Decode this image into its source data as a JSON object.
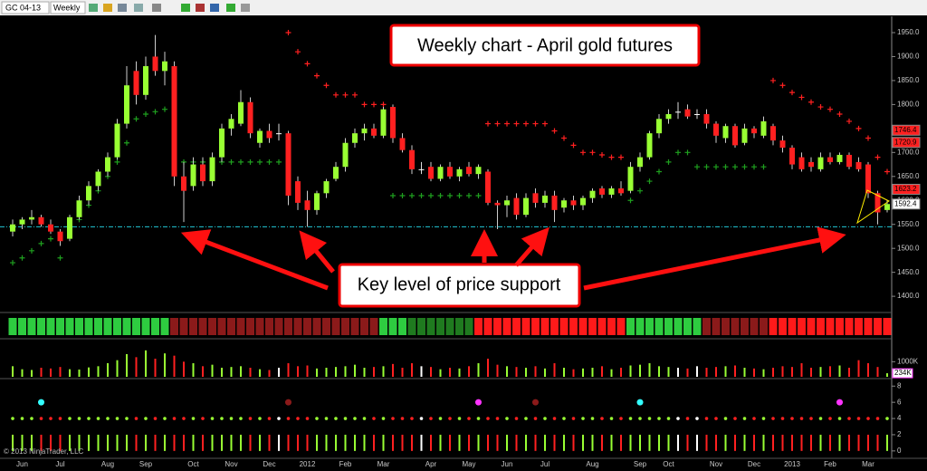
{
  "toolbar": {
    "symbol": "GC 04-13",
    "period": "Weekly"
  },
  "copyright": "© 2013 NinjaTrader, LLC",
  "chart_data": {
    "type": "candlestick",
    "title": "Weekly chart - April gold futures",
    "annotation": "Key level of price support",
    "support_level": 1545,
    "up_color": "#99ff33",
    "down_color": "#ff2020",
    "flat_color": "#ffffff",
    "ylim": [
      1370,
      1984
    ],
    "yticks": [
      {
        "value": 1400,
        "label": "1400.0"
      },
      {
        "value": 1450,
        "label": "1450.0"
      },
      {
        "value": 1500,
        "label": "1500.0"
      },
      {
        "value": 1550,
        "label": "1550.0"
      },
      {
        "value": 1600,
        "label": "1600.0"
      },
      {
        "value": 1650,
        "label": "1650.0"
      },
      {
        "value": 1700,
        "label": "1700.0"
      },
      {
        "value": 1750,
        "label": "1750.0"
      },
      {
        "value": 1800,
        "label": "1800.0"
      },
      {
        "value": 1850,
        "label": "1850.0"
      },
      {
        "value": 1900,
        "label": "1900.0"
      },
      {
        "value": 1950,
        "label": "1950.0"
      }
    ],
    "x_labels": [
      "Jun",
      "Jul",
      "Aug",
      "Sep",
      "Oct",
      "Nov",
      "Dec",
      "2012",
      "Feb",
      "Mar",
      "Apr",
      "May",
      "Jun",
      "Jul",
      "Aug",
      "Sep",
      "Oct",
      "Nov",
      "Dec",
      "2013",
      "Feb",
      "Mar"
    ],
    "x_label_index": [
      1,
      5,
      10,
      14,
      19,
      23,
      27,
      31,
      35,
      39,
      44,
      48,
      52,
      56,
      61,
      66,
      69,
      74,
      78,
      82,
      86,
      90
    ],
    "open": [
      1535,
      1550,
      1560,
      1565,
      1550,
      1535,
      1520,
      1565,
      1600,
      1630,
      1660,
      1690,
      1760,
      1870,
      1820,
      1900,
      1870,
      1880,
      1650,
      1630,
      1675,
      1640,
      1690,
      1750,
      1760,
      1805,
      1720,
      1745,
      1740,
      1740,
      1640,
      1600,
      1580,
      1615,
      1645,
      1670,
      1720,
      1740,
      1750,
      1735,
      1795,
      1730,
      1705,
      1665,
      1670,
      1645,
      1670,
      1650,
      1670,
      1655,
      1660,
      1595,
      1590,
      1605,
      1570,
      1615,
      1595,
      1610,
      1585,
      1600,
      1590,
      1605,
      1625,
      1612,
      1625,
      1620,
      1670,
      1690,
      1740,
      1770,
      1785,
      1790,
      1780,
      1780,
      1760,
      1730,
      1755,
      1720,
      1750,
      1735,
      1755,
      1725,
      1710,
      1690,
      1680,
      1665,
      1690,
      1680,
      1695,
      1680,
      1675,
      1615,
      1580
    ],
    "high": [
      1560,
      1565,
      1580,
      1570,
      1560,
      1540,
      1570,
      1610,
      1640,
      1665,
      1700,
      1770,
      1880,
      1890,
      1900,
      1945,
      1910,
      1890,
      1680,
      1690,
      1690,
      1700,
      1760,
      1780,
      1830,
      1815,
      1750,
      1760,
      1760,
      1745,
      1650,
      1620,
      1620,
      1645,
      1680,
      1730,
      1750,
      1760,
      1760,
      1795,
      1800,
      1740,
      1715,
      1680,
      1680,
      1675,
      1680,
      1670,
      1680,
      1675,
      1665,
      1600,
      1610,
      1615,
      1615,
      1625,
      1620,
      1620,
      1605,
      1610,
      1610,
      1625,
      1630,
      1630,
      1640,
      1680,
      1700,
      1745,
      1780,
      1790,
      1805,
      1800,
      1790,
      1790,
      1765,
      1760,
      1760,
      1760,
      1755,
      1775,
      1760,
      1735,
      1715,
      1700,
      1690,
      1700,
      1700,
      1700,
      1700,
      1690,
      1680,
      1620,
      1600
    ],
    "low": [
      1525,
      1540,
      1550,
      1545,
      1530,
      1505,
      1515,
      1560,
      1590,
      1620,
      1650,
      1685,
      1750,
      1800,
      1810,
      1860,
      1840,
      1630,
      1555,
      1620,
      1630,
      1630,
      1680,
      1735,
      1755,
      1730,
      1710,
      1720,
      1725,
      1590,
      1580,
      1545,
      1570,
      1605,
      1640,
      1660,
      1710,
      1725,
      1730,
      1730,
      1720,
      1700,
      1655,
      1655,
      1640,
      1640,
      1645,
      1640,
      1650,
      1645,
      1590,
      1540,
      1565,
      1560,
      1565,
      1585,
      1585,
      1555,
      1575,
      1580,
      1580,
      1595,
      1605,
      1605,
      1610,
      1615,
      1660,
      1685,
      1730,
      1760,
      1770,
      1770,
      1770,
      1750,
      1720,
      1720,
      1710,
      1715,
      1730,
      1730,
      1715,
      1700,
      1665,
      1660,
      1660,
      1660,
      1675,
      1675,
      1665,
      1660,
      1605,
      1550,
      1575
    ],
    "close": [
      1550,
      1560,
      1565,
      1550,
      1535,
      1515,
      1565,
      1600,
      1630,
      1660,
      1690,
      1760,
      1840,
      1820,
      1880,
      1870,
      1890,
      1650,
      1620,
      1675,
      1640,
      1690,
      1750,
      1770,
      1805,
      1740,
      1745,
      1730,
      1740,
      1610,
      1595,
      1580,
      1615,
      1640,
      1670,
      1720,
      1740,
      1750,
      1735,
      1790,
      1730,
      1705,
      1665,
      1665,
      1645,
      1670,
      1650,
      1665,
      1655,
      1670,
      1595,
      1590,
      1600,
      1570,
      1605,
      1595,
      1610,
      1580,
      1600,
      1590,
      1605,
      1620,
      1612,
      1625,
      1615,
      1670,
      1690,
      1740,
      1770,
      1780,
      1785,
      1775,
      1780,
      1760,
      1735,
      1755,
      1715,
      1750,
      1740,
      1765,
      1725,
      1710,
      1675,
      1665,
      1670,
      1690,
      1680,
      1695,
      1670,
      1665,
      1615,
      1575,
      1592.4
    ],
    "long_stops": [
      1470,
      1480,
      1495,
      1510,
      1520,
      1480,
      1540,
      1560,
      1590,
      1620,
      1650,
      1680,
      1720,
      1770,
      1780,
      1785,
      1790,
      1680,
      1680,
      1680,
      1680,
      1680,
      1680,
      1680,
      1680,
      1680,
      1680,
      1680,
      1680,
      null,
      null,
      null,
      null,
      null,
      null,
      null,
      null,
      null,
      null,
      null,
      1610,
      1610,
      1610,
      1610,
      1610,
      1610,
      1610,
      1610,
      1610,
      1610,
      null,
      null,
      null,
      null,
      null,
      null,
      null,
      null,
      null,
      null,
      null,
      null,
      null,
      null,
      null,
      1600,
      1620,
      1640,
      1660,
      1680,
      1700,
      1700,
      1670,
      1670,
      1670,
      1670,
      1670,
      1670,
      1670,
      1670,
      null,
      null,
      null,
      null,
      null,
      null,
      null,
      null,
      null,
      null,
      null,
      null,
      null
    ],
    "short_stops": [
      null,
      null,
      null,
      null,
      null,
      null,
      null,
      null,
      null,
      null,
      null,
      null,
      null,
      null,
      null,
      null,
      null,
      null,
      null,
      null,
      null,
      null,
      null,
      null,
      null,
      null,
      null,
      null,
      null,
      1950,
      1910,
      1885,
      1860,
      1840,
      1820,
      1820,
      1820,
      1800,
      1800,
      1800,
      null,
      null,
      null,
      null,
      null,
      null,
      null,
      null,
      null,
      null,
      1760,
      1760,
      1760,
      1760,
      1760,
      1760,
      1760,
      1745,
      1730,
      1715,
      1700,
      1700,
      1695,
      1690,
      1690,
      null,
      null,
      null,
      null,
      null,
      null,
      null,
      null,
      null,
      null,
      null,
      null,
      null,
      null,
      null,
      1850,
      1840,
      1825,
      1815,
      1805,
      1795,
      1790,
      1780,
      1765,
      1750,
      1730,
      1690,
      1660
    ],
    "price_labels": [
      {
        "value": 1746.4,
        "color": "#ff2020"
      },
      {
        "value": 1720.9,
        "color": "#ff2020"
      },
      {
        "value": 1623.2,
        "color": "#ff2020"
      },
      {
        "value": 1592.4,
        "color": "#ffffff"
      }
    ],
    "strip": [
      {
        "start": 0,
        "end": 16,
        "color": "#2ecc40"
      },
      {
        "start": 17,
        "end": 38,
        "color": "#8b1a1a"
      },
      {
        "start": 39,
        "end": 41,
        "color": "#2ecc40"
      },
      {
        "start": 42,
        "end": 48,
        "color": "#1f7a1f"
      },
      {
        "start": 49,
        "end": 64,
        "color": "#ff1a1a"
      },
      {
        "start": 65,
        "end": 72,
        "color": "#2ecc40"
      },
      {
        "start": 73,
        "end": 79,
        "color": "#8b1a1a"
      },
      {
        "start": 80,
        "end": 92,
        "color": "#ff1a1a"
      }
    ],
    "volume": [
      700,
      500,
      450,
      600,
      550,
      650,
      500,
      480,
      620,
      700,
      900,
      1100,
      1500,
      1300,
      1750,
      1200,
      1550,
      1400,
      1000,
      900,
      700,
      800,
      600,
      650,
      700,
      600,
      500,
      450,
      600,
      900,
      700,
      750,
      550,
      600,
      650,
      700,
      800,
      600,
      650,
      700,
      850,
      600,
      900,
      700,
      650,
      500,
      600,
      550,
      700,
      900,
      1200,
      800,
      700,
      650,
      600,
      700,
      550,
      900,
      600,
      500,
      550,
      600,
      700,
      500,
      600,
      750,
      800,
      900,
      700,
      650,
      600,
      550,
      700,
      600,
      650,
      700,
      750,
      600,
      550,
      500,
      600,
      700,
      650,
      900,
      600,
      650,
      700,
      750,
      600,
      1100,
      900,
      650,
      234
    ],
    "volume_ylim": [
      0,
      2400
    ],
    "volume_yticks": [
      {
        "value": 1000,
        "label": "1000K"
      }
    ],
    "volume_label": {
      "value": 234,
      "label": "234K"
    },
    "indicator": {
      "ylim": [
        -0.8,
        8.7
      ],
      "yticks": [
        0,
        2,
        4,
        6,
        8
      ],
      "bar_value": 2,
      "dot_value": 4,
      "signal_value": 6,
      "signals": [
        {
          "index": 3,
          "color": "#33ffff"
        },
        {
          "index": 29,
          "color": "#8b1a1a"
        },
        {
          "index": 49,
          "color": "#ff33ff"
        },
        {
          "index": 55,
          "color": "#8b1a1a"
        },
        {
          "index": 66,
          "color": "#33ffff"
        },
        {
          "index": 87,
          "color": "#ff33ff"
        }
      ]
    }
  }
}
